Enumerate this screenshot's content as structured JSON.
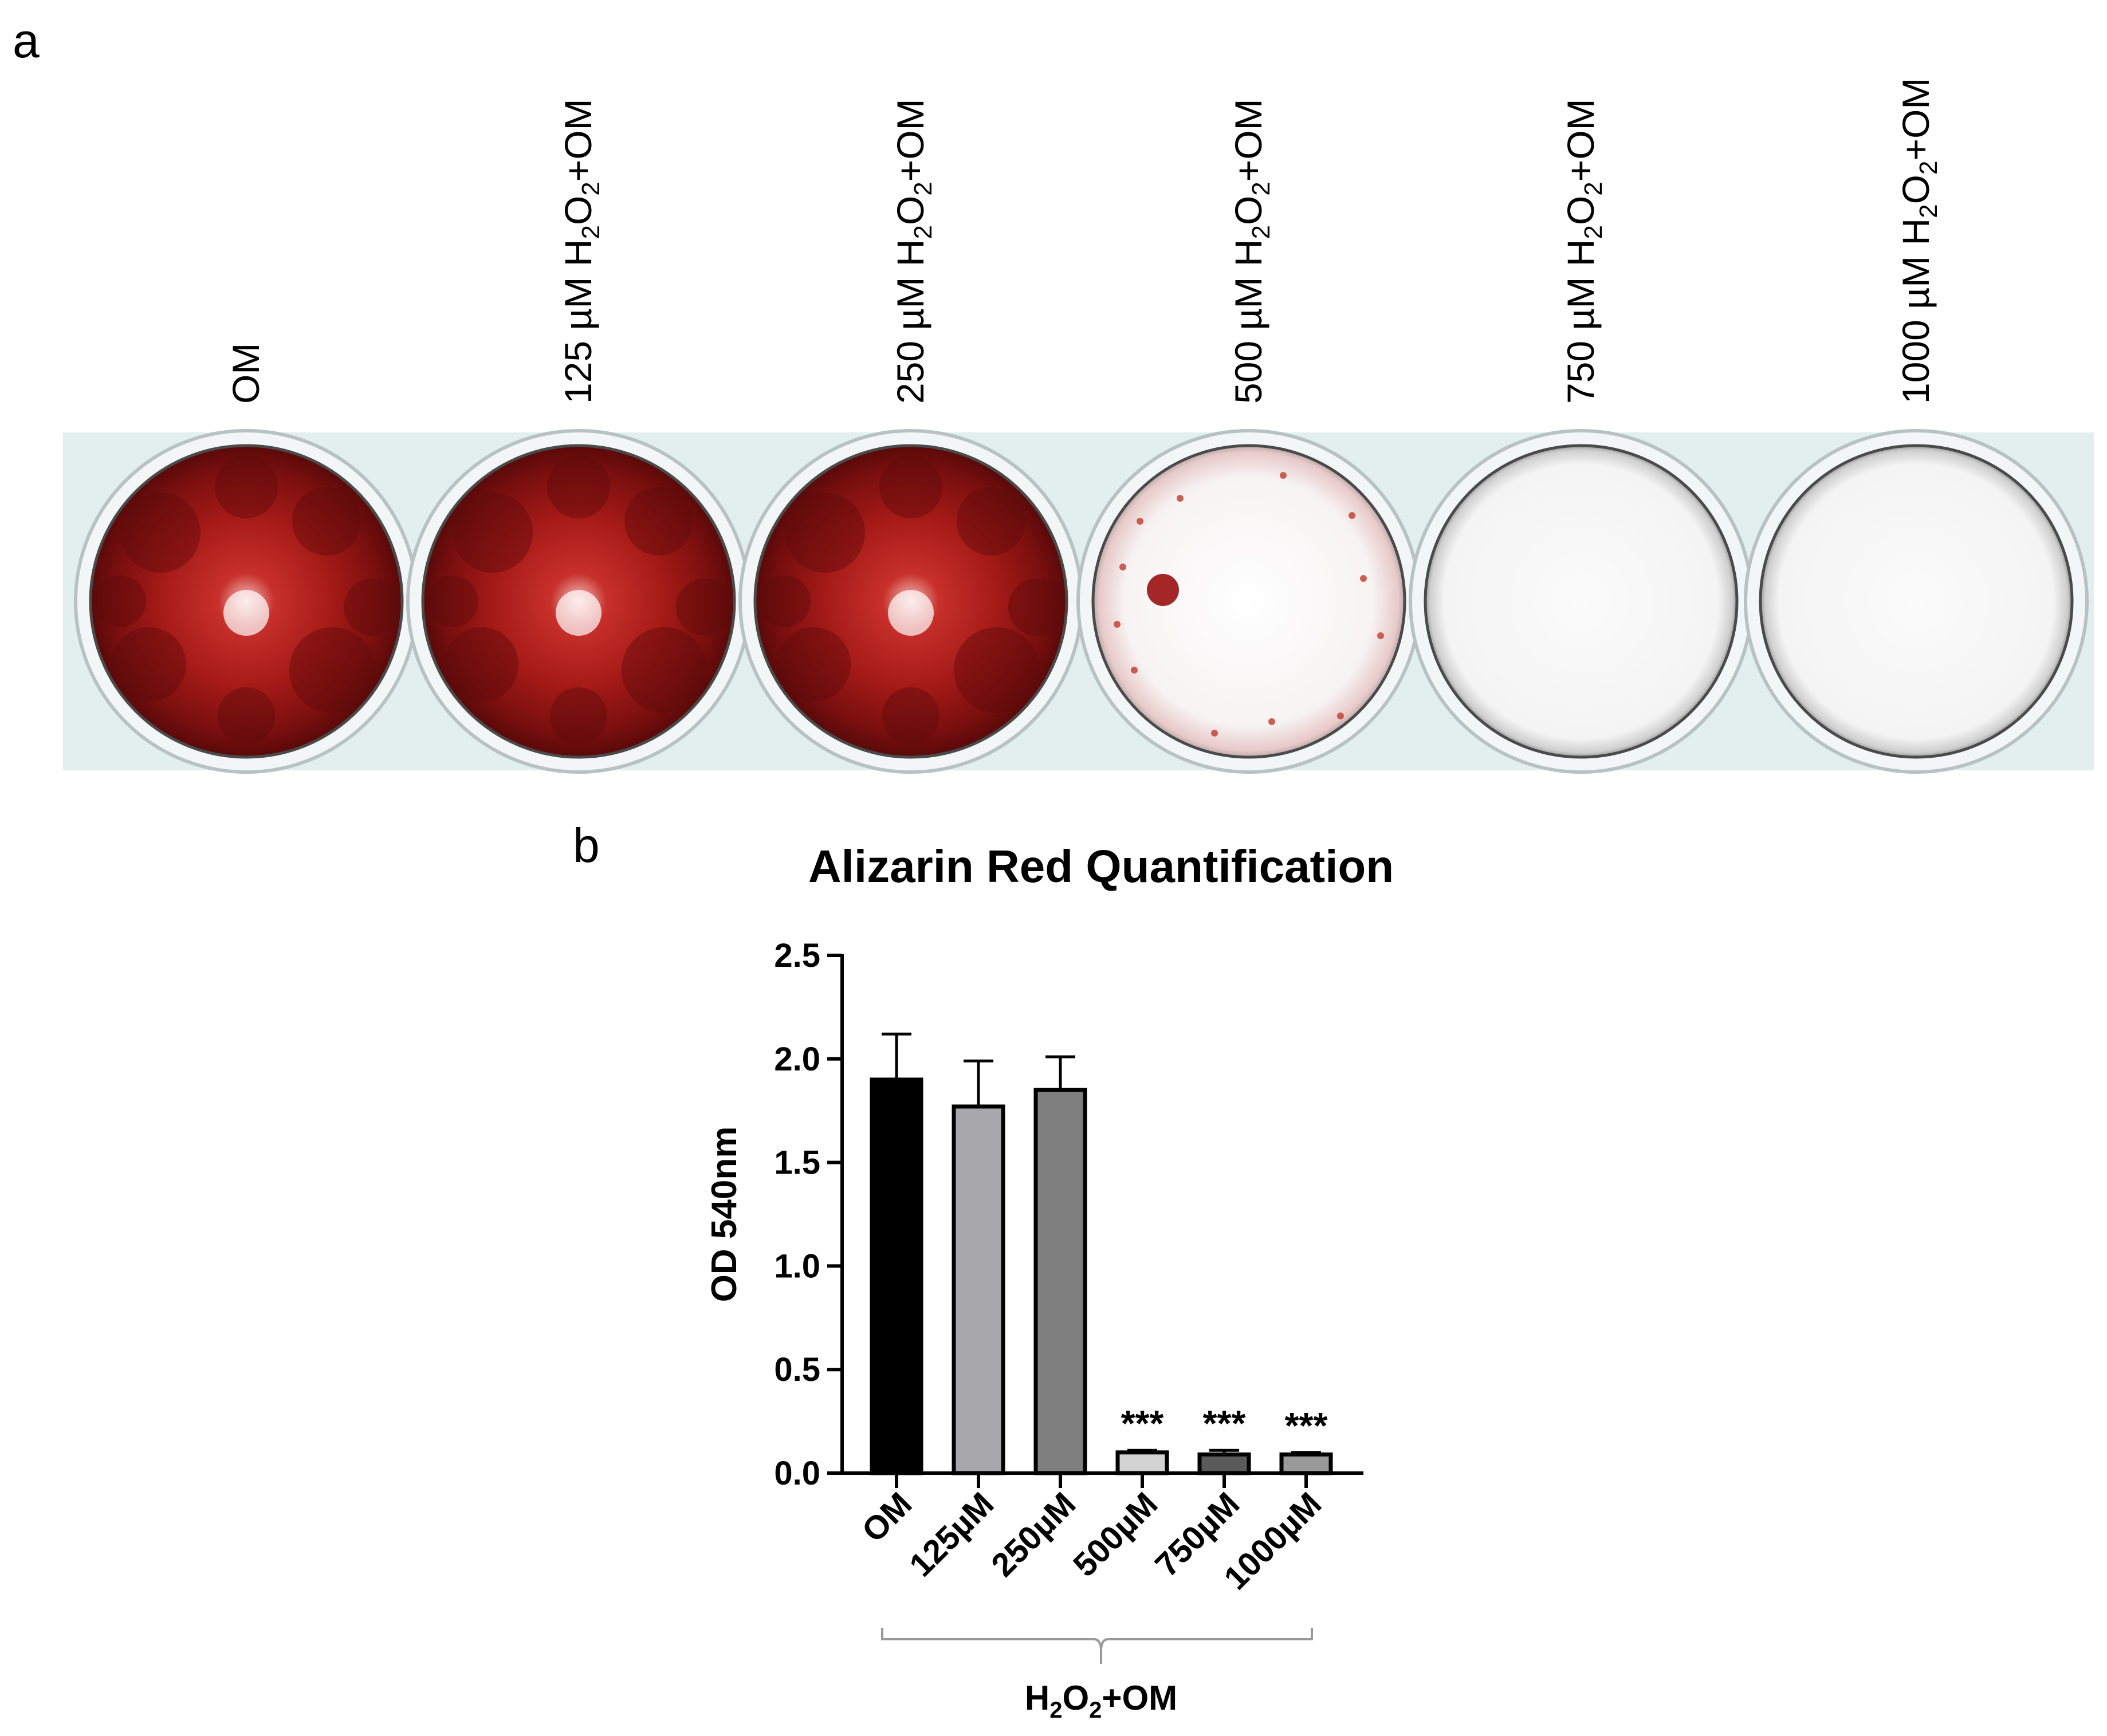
{
  "panel_a": {
    "label": "a",
    "wells": [
      {
        "text": "OM",
        "sub": "",
        "text2": "",
        "stain": "heavy"
      },
      {
        "text": "125 µM H",
        "sub": "2",
        "text2": "O",
        "sub2": "2",
        "text3": "+OM",
        "stain": "heavy"
      },
      {
        "text": "250 µM H",
        "sub": "2",
        "text2": "O",
        "sub2": "2",
        "text3": "+OM",
        "stain": "heavy"
      },
      {
        "text": "500 µM H",
        "sub": "2",
        "text2": "O",
        "sub2": "2",
        "text3": "+OM",
        "stain": "light"
      },
      {
        "text": "750 µM H",
        "sub": "2",
        "text2": "O",
        "sub2": "2",
        "text3": "+OM",
        "stain": "none"
      },
      {
        "text": "1000 µM H",
        "sub": "2",
        "text2": "O",
        "sub2": "2",
        "text3": "+OM",
        "stain": "none"
      }
    ],
    "colors": {
      "stain_dark": "#7a0f0f",
      "stain_mid": "#b3201c",
      "plate_bg": "#e3eeee"
    }
  },
  "panel_b": {
    "label": "b",
    "group_label": {
      "part1": "H",
      "sub1": "2",
      "part2": "O",
      "sub2": "2",
      "part3": "+OM"
    }
  },
  "chart_data": {
    "type": "bar",
    "title": "Alizarin Red Quantification",
    "ylabel": "OD 540nm",
    "xlabel": "",
    "categories": [
      "OM",
      "125µM",
      "250µM",
      "500µM",
      "750µM",
      "1000µM"
    ],
    "values": [
      1.9,
      1.77,
      1.85,
      0.1,
      0.09,
      0.09
    ],
    "errors": [
      0.22,
      0.22,
      0.16,
      0.01,
      0.02,
      0.01
    ],
    "significance": [
      "",
      "",
      "",
      "***",
      "***",
      "***"
    ],
    "bar_colors": [
      "#000000",
      "#a8a8ac",
      "#7e7e7e",
      "#d2d2d2",
      "#5a5a5a",
      "#9a9a9a"
    ],
    "ylim": [
      0,
      2.5
    ],
    "yticks": [
      "0.0",
      "0.5",
      "1.0",
      "1.5",
      "2.0",
      "2.5"
    ],
    "grid": false
  }
}
